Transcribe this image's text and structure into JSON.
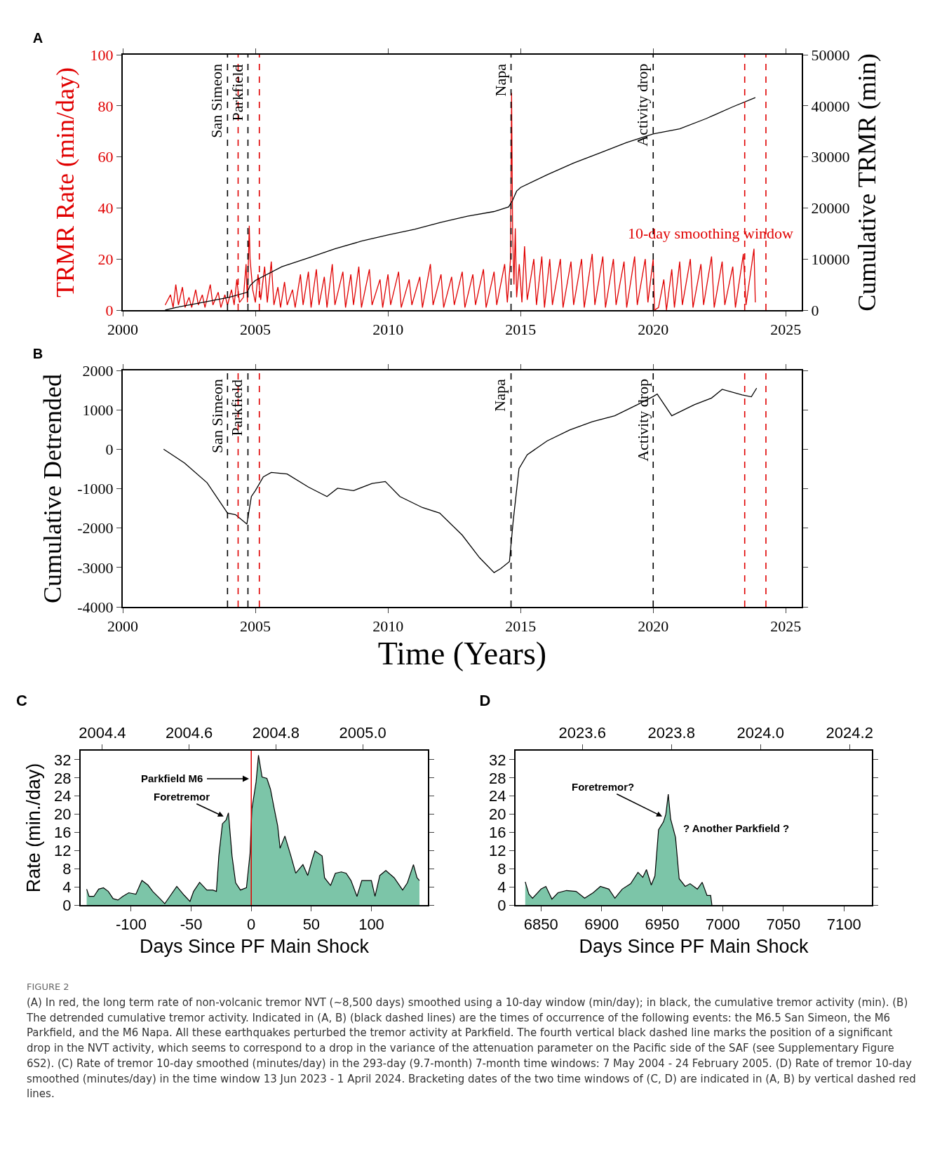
{
  "chart_data": [
    {
      "type": "line",
      "title": "A",
      "ylabel": "TRMR Rate (min/day)",
      "y2label": "Cumulative TRMR (min)",
      "xlim": [
        2000,
        2025.6
      ],
      "xticks": [
        2000,
        2005,
        2010,
        2015,
        2020,
        2025
      ],
      "ylim": [
        0,
        100
      ],
      "yticks": [
        0,
        20,
        40,
        60,
        80,
        100
      ],
      "y2lim": [
        0,
        50000
      ],
      "y2ticks": [
        0,
        10000,
        20000,
        30000,
        40000,
        50000
      ],
      "series": [
        {
          "color": "#e00000",
          "x": [
            2001.6,
            2001.8,
            2001.9,
            2002.0,
            2002.1,
            2002.25,
            2002.35,
            2002.5,
            2002.6,
            2002.75,
            2002.85,
            2003.0,
            2003.1,
            2003.3,
            2003.4,
            2003.6,
            2003.7,
            2003.85,
            2003.95,
            2004.1,
            2004.2,
            2004.3,
            2004.4,
            2004.55,
            2004.65,
            2004.7,
            2004.77,
            2004.8,
            2004.9,
            2005.0,
            2005.1,
            2005.2,
            2005.35,
            2005.45,
            2005.6,
            2005.7,
            2005.85,
            2005.95,
            2006.1,
            2006.2,
            2006.4,
            2006.5,
            2006.7,
            2006.8,
            2007.0,
            2007.1,
            2007.3,
            2007.4,
            2007.6,
            2007.7,
            2007.9,
            2008.0,
            2008.3,
            2008.4,
            2008.6,
            2008.7,
            2008.9,
            2009.0,
            2009.3,
            2009.4,
            2009.7,
            2009.8,
            2010.0,
            2010.1,
            2010.4,
            2010.5,
            2010.8,
            2010.9,
            2011.2,
            2011.3,
            2011.6,
            2011.7,
            2012.0,
            2012.1,
            2012.4,
            2012.5,
            2012.8,
            2012.9,
            2013.2,
            2013.3,
            2013.6,
            2013.7,
            2014.0,
            2014.1,
            2014.4,
            2014.5,
            2014.62,
            2014.66,
            2014.7,
            2014.75,
            2014.8,
            2014.85,
            2014.95,
            2015.05,
            2015.15,
            2015.25,
            2015.5,
            2015.6,
            2015.8,
            2015.9,
            2016.1,
            2016.2,
            2016.5,
            2016.6,
            2016.9,
            2017.0,
            2017.3,
            2017.4,
            2017.7,
            2017.8,
            2018.1,
            2018.2,
            2018.5,
            2018.6,
            2018.9,
            2019.0,
            2019.3,
            2019.4,
            2019.7,
            2019.8,
            2020.0,
            2020.05,
            2020.2,
            2020.4,
            2020.5,
            2020.7,
            2020.8,
            2021.0,
            2021.1,
            2021.4,
            2021.5,
            2021.8,
            2021.9,
            2022.2,
            2022.3,
            2022.6,
            2022.7,
            2023.0,
            2023.1,
            2023.4,
            2023.5,
            2023.8,
            2023.85
          ],
          "values": [
            2,
            6,
            1,
            10,
            2,
            9,
            1,
            5,
            1,
            8,
            2,
            6,
            1,
            10,
            2,
            7,
            1,
            6,
            2,
            8,
            2,
            12,
            3,
            5,
            18,
            3,
            33,
            20,
            8,
            3,
            14,
            4,
            17,
            3,
            19,
            2,
            9,
            1,
            11,
            2,
            8,
            1,
            14,
            2,
            15,
            1,
            16,
            2,
            13,
            1,
            18,
            2,
            15,
            1,
            14,
            2,
            17,
            1,
            16,
            2,
            12,
            1,
            14,
            2,
            15,
            1,
            12,
            2,
            13,
            1,
            18,
            2,
            14,
            1,
            13,
            2,
            15,
            1,
            14,
            2,
            16,
            1,
            15,
            2,
            18,
            3,
            20,
            85,
            30,
            10,
            32,
            5,
            18,
            3,
            25,
            4,
            20,
            2,
            21,
            1,
            20,
            2,
            20,
            1,
            19,
            2,
            20,
            1,
            22,
            2,
            21,
            1,
            20,
            2,
            19,
            1,
            21,
            2,
            20,
            3,
            20,
            0,
            1,
            12,
            0,
            16,
            1,
            19,
            2,
            20,
            1,
            18,
            2,
            21,
            1,
            19,
            2,
            17,
            1,
            22,
            2,
            24,
            3
          ]
        },
        {
          "color": "#000000",
          "axis": "y2",
          "x": [
            2001.6,
            2002,
            2003,
            2004,
            2004.7,
            2004.8,
            2005,
            2006,
            2007,
            2008,
            2009,
            2010,
            2011,
            2012,
            2013,
            2014,
            2014.55,
            2014.7,
            2014.85,
            2015,
            2016,
            2017,
            2018,
            2019,
            2020,
            2021,
            2022,
            2023,
            2023.85
          ],
          "values": [
            0,
            500,
            1500,
            2500,
            3500,
            4800,
            5800,
            8500,
            10200,
            12000,
            13500,
            14700,
            15800,
            17200,
            18400,
            19300,
            20200,
            21500,
            23300,
            24000,
            26500,
            28800,
            30800,
            32800,
            34500,
            35500,
            37500,
            39800,
            41600
          ]
        }
      ],
      "ref_lines": [
        {
          "axis": "x",
          "value": 2003.95,
          "label": "San Simeon",
          "color": "#000000",
          "line_style": "dashed"
        },
        {
          "axis": "x",
          "value": 2004.72,
          "label": "Parkfield",
          "color": "#000000",
          "line_style": "dashed"
        },
        {
          "axis": "x",
          "value": 2014.64,
          "label": "Napa",
          "color": "#000000",
          "line_style": "dashed"
        },
        {
          "axis": "x",
          "value": 2020.0,
          "label": "Activity drop",
          "color": "#000000",
          "line_style": "dashed"
        },
        {
          "axis": "x",
          "value": 2004.35,
          "color": "#e00000",
          "line_style": "dashed"
        },
        {
          "axis": "x",
          "value": 2005.15,
          "color": "#e00000",
          "line_style": "dashed"
        },
        {
          "axis": "x",
          "value": 2023.45,
          "color": "#e00000",
          "line_style": "dashed"
        },
        {
          "axis": "x",
          "value": 2024.25,
          "color": "#e00000",
          "line_style": "dashed"
        }
      ],
      "annotations": [
        "10-day smoothing window"
      ]
    },
    {
      "type": "line",
      "title": "B",
      "ylabel": "Cumulative Detrended",
      "xlabel": "Time (Years)",
      "xlim": [
        2000,
        2025.6
      ],
      "xticks": [
        2000,
        2005,
        2010,
        2015,
        2020,
        2025
      ],
      "ylim": [
        -4000,
        2000
      ],
      "yticks": [
        -4000,
        -3000,
        -2000,
        -1000,
        0,
        1000,
        2000
      ],
      "series": [
        {
          "color": "#000000",
          "x": [
            2001.54,
            2002.33,
            2003.18,
            2003.95,
            2004.25,
            2004.68,
            2004.85,
            2005.0,
            2005.3,
            2005.6,
            2006.2,
            2007.0,
            2007.7,
            2008.1,
            2008.7,
            2009.4,
            2009.9,
            2010.45,
            2011.3,
            2011.95,
            2012.8,
            2013.45,
            2014.0,
            2014.25,
            2014.58,
            2014.72,
            2014.94,
            2015.25,
            2016.0,
            2016.85,
            2017.7,
            2018.55,
            2019.4,
            2020.0,
            2020.15,
            2020.7,
            2021.55,
            2022.2,
            2022.6,
            2023.35,
            2023.7,
            2023.9
          ],
          "values": [
            0,
            -350,
            -850,
            -1620,
            -1660,
            -1900,
            -1200,
            -1050,
            -700,
            -590,
            -630,
            -960,
            -1200,
            -990,
            -1050,
            -870,
            -820,
            -1200,
            -1480,
            -1620,
            -2180,
            -2750,
            -3130,
            -3030,
            -2850,
            -1830,
            -490,
            -140,
            210,
            490,
            700,
            850,
            1130,
            1340,
            1400,
            850,
            1130,
            1300,
            1520,
            1380,
            1330,
            1550
          ]
        }
      ],
      "ref_lines": [
        {
          "axis": "x",
          "value": 2003.95,
          "label": "San Simeon",
          "color": "#000000",
          "line_style": "dashed"
        },
        {
          "axis": "x",
          "value": 2004.72,
          "label": "Parkfield",
          "color": "#000000",
          "line_style": "dashed"
        },
        {
          "axis": "x",
          "value": 2014.64,
          "label": "Napa",
          "color": "#000000",
          "line_style": "dashed"
        },
        {
          "axis": "x",
          "value": 2020.0,
          "label": "Activity drop",
          "color": "#000000",
          "line_style": "dashed"
        },
        {
          "axis": "x",
          "value": 2004.35,
          "color": "#e00000",
          "line_style": "dashed"
        },
        {
          "axis": "x",
          "value": 2005.15,
          "color": "#e00000",
          "line_style": "dashed"
        },
        {
          "axis": "x",
          "value": 2023.45,
          "color": "#e00000",
          "line_style": "dashed"
        },
        {
          "axis": "x",
          "value": 2024.25,
          "color": "#e00000",
          "line_style": "dashed"
        }
      ]
    },
    {
      "type": "area",
      "title": "C",
      "ylabel": "Rate (min./day)",
      "xlabel": "Days Since PF Main Shock",
      "xlim": [
        -142,
        147
      ],
      "xticks": [
        -100,
        -50,
        0,
        50,
        100
      ],
      "x2lim": [
        2004.35,
        2005.15
      ],
      "x2ticks": [
        {
          "value": 2004.4,
          "label": "2004.4"
        },
        {
          "value": 2004.6,
          "label": "2004.6"
        },
        {
          "value": 2004.8,
          "label": "2004.8"
        },
        {
          "value": 2005.0,
          "label": "2005.0"
        }
      ],
      "ylim": [
        0,
        34
      ],
      "yticks": [
        0,
        4,
        8,
        12,
        16,
        20,
        24,
        28,
        32
      ],
      "series": [
        {
          "color": "#7cc5a8",
          "x": [
            -137,
            -135,
            -131,
            -127,
            -123,
            -119,
            -115,
            -111,
            -107,
            -102,
            -96,
            -91,
            -86,
            -82,
            -76,
            -72,
            -67,
            -62,
            -56,
            -51,
            -48,
            -43,
            -37,
            -32,
            -29,
            -27,
            -24,
            -21,
            -19,
            -16,
            -13,
            -9,
            -4,
            -1,
            0.5,
            4,
            6,
            9,
            13,
            16,
            19,
            22,
            24,
            28,
            33,
            37,
            43,
            47,
            51,
            53,
            59,
            61,
            66,
            70,
            75,
            79,
            83,
            88,
            92,
            100,
            103,
            107,
            112,
            119,
            126,
            130,
            135,
            138,
            140
          ],
          "values": [
            3.5,
            1.9,
            1.9,
            3.5,
            3.8,
            3,
            1.4,
            1.1,
            1.9,
            2.7,
            2.4,
            5.4,
            4.4,
            3,
            1.4,
            0.3,
            2.2,
            4.1,
            2.2,
            0.8,
            3,
            5,
            3.3,
            3.3,
            3,
            10.8,
            17.9,
            18.7,
            20.3,
            10.8,
            4.9,
            3.3,
            3.8,
            11.4,
            21.1,
            27.1,
            33,
            28.2,
            27.9,
            25.5,
            21.4,
            17.4,
            12.5,
            15.2,
            10.8,
            7,
            8.9,
            6.5,
            10.3,
            11.9,
            10.8,
            6,
            4.3,
            7,
            7.3,
            7,
            5.4,
            1.9,
            5.4,
            5.4,
            1.9,
            6.5,
            7.6,
            6,
            3.3,
            4.9,
            8.9,
            6,
            5.4
          ]
        }
      ],
      "ref_lines": [
        {
          "axis": "x",
          "value": 0,
          "color": "#e00000",
          "line_style": "solid"
        }
      ],
      "annotations": [
        "Parkfield M6",
        {
          "text": "Foretremor",
          "x": -23,
          "y": 19.5
        }
      ]
    },
    {
      "type": "area",
      "title": "D",
      "xlabel": "Days Since PF Main Shock",
      "xlim": [
        6829,
        7123
      ],
      "xticks": [
        6850,
        6900,
        6950,
        7000,
        7050,
        7100
      ],
      "x2lim": [
        2023.45,
        2024.25
      ],
      "x2ticks": [
        {
          "value": 2023.6,
          "label": "2023.6"
        },
        {
          "value": 2023.8,
          "label": "2023.8"
        },
        {
          "value": 2024.0,
          "label": "2024.0"
        },
        {
          "value": 2024.2,
          "label": "2024.2"
        }
      ],
      "ylim": [
        0,
        34
      ],
      "yticks": [
        0,
        4,
        8,
        12,
        16,
        20,
        24,
        28,
        32
      ],
      "series": [
        {
          "color": "#7cc5a8",
          "x": [
            6837,
            6840,
            6843,
            6850,
            6854,
            6859,
            6864,
            6871,
            6879,
            6886,
            6893,
            6899,
            6906,
            6911,
            6917,
            6924,
            6930,
            6934,
            6937,
            6941,
            6944,
            6947,
            6951,
            6953,
            6955,
            6957,
            6961,
            6964,
            6969,
            6973,
            6979,
            6983,
            6987,
            6990,
            6991
          ],
          "values": [
            5.1,
            2.4,
            1.5,
            3.5,
            4.1,
            1.3,
            2.7,
            3.2,
            3,
            1.5,
            2.7,
            4.1,
            3.5,
            1.5,
            3.5,
            4.7,
            7.2,
            6.1,
            7.8,
            4.4,
            6.4,
            16.6,
            18.3,
            20,
            24.4,
            18.9,
            14.9,
            5.8,
            4.1,
            4.7,
            3.5,
            5,
            2.1,
            2.1,
            0
          ]
        }
      ],
      "annotations": [
        {
          "text": "Foretremor?",
          "x": 6950,
          "y": 19.5
        },
        "? Another Parkfield ?"
      ]
    },
    {
      "type": "other",
      "title": "FIGURE 2",
      "annotations": [
        "(A) In red, the long term rate of non-volcanic tremor NVT (~8,500 days) smoothed using a 10-day window (min/day); in black, the cumulative tremor activity (min). (B) The detrended cumulative tremor activity. Indicated in (A, B) (black dashed lines) are the times of occurrence of the following events: the M6.5 San Simeon, the M6 Parkfield, and the M6 Napa. All these earthquakes perturbed the tremor activity at Parkfield. The fourth vertical black dashed line marks the position of a significant drop in the NVT activity, which seems to correspond to a drop in the variance of the attenuation parameter on the Pacific side of the SAF (see Supplementary Figure 6S2). (C) Rate of tremor 10-day smoothed (minutes/day) in the 293-day (9.7-month) 7-month time windows: 7 May 2004 - 24 February 2005. (D) Rate of tremor 10-day smoothed (minutes/day) in the time window 13 Jun 2023 - 1 April 2024. Bracketing dates of the two time windows of (C, D) are indicated in (A, B) by vertical dashed red lines."
      ]
    }
  ]
}
